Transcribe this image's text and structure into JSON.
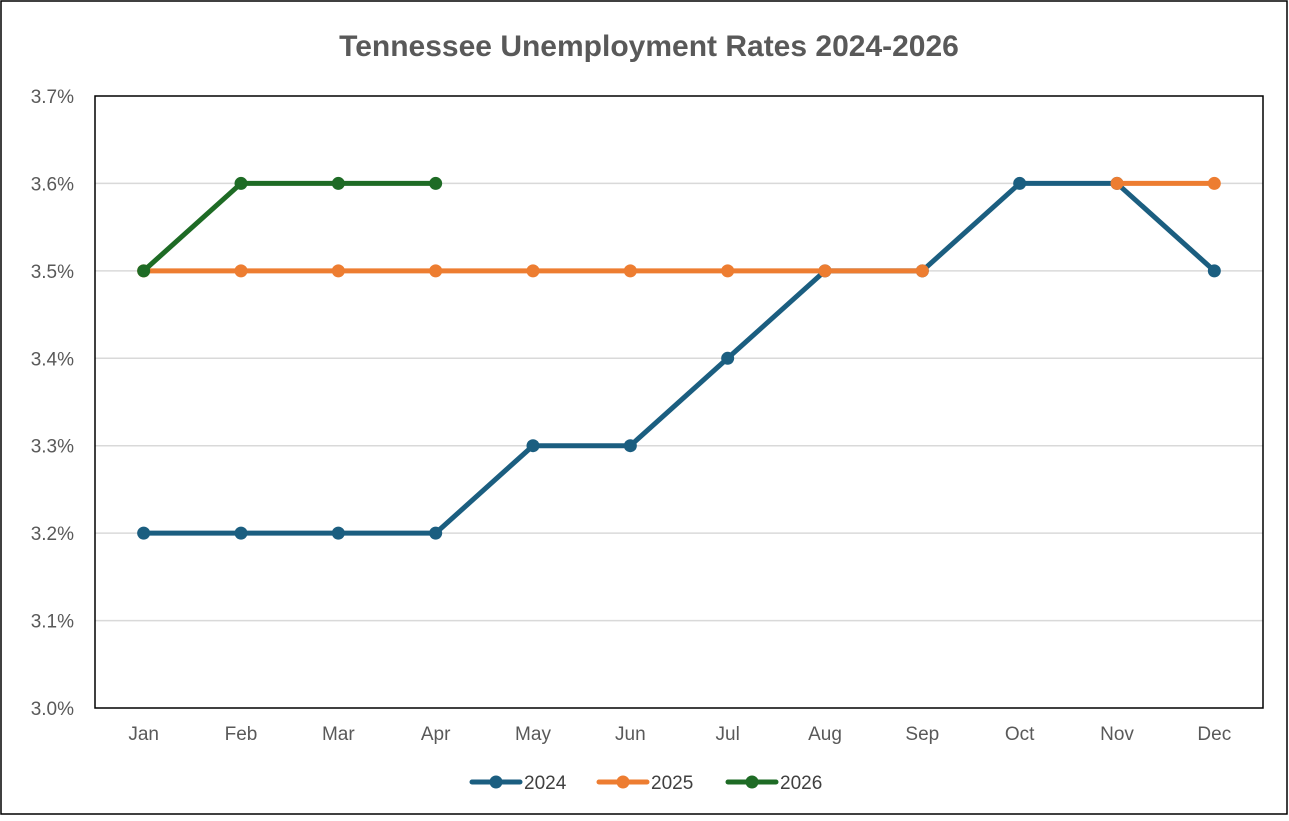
{
  "chart_data": {
    "type": "line",
    "title": "Tennessee Unemployment Rates 2024-2026",
    "xlabel": "",
    "ylabel": "",
    "categories": [
      "Jan",
      "Feb",
      "Mar",
      "Apr",
      "May",
      "Jun",
      "Jul",
      "Aug",
      "Sep",
      "Oct",
      "Nov",
      "Dec"
    ],
    "y_tick_labels": [
      "3.0%",
      "3.1%",
      "3.2%",
      "3.3%",
      "3.4%",
      "3.5%",
      "3.6%",
      "3.7%"
    ],
    "ylim": [
      3.0,
      3.7
    ],
    "y_step": 0.1,
    "grid": true,
    "legend_position": "bottom",
    "series": [
      {
        "name": "2024",
        "color": "#1b5e80",
        "values": [
          3.2,
          3.2,
          3.2,
          3.2,
          3.3,
          3.3,
          3.4,
          3.5,
          3.5,
          3.6,
          3.6,
          3.5
        ]
      },
      {
        "name": "2025",
        "color": "#ed7d31",
        "values": [
          3.5,
          3.5,
          3.5,
          3.5,
          3.5,
          3.5,
          3.5,
          3.5,
          3.5,
          null,
          3.6,
          3.6
        ]
      },
      {
        "name": "2026",
        "color": "#1e6b25",
        "values": [
          3.5,
          3.6,
          3.6,
          3.6,
          null,
          null,
          null,
          null,
          null,
          null,
          null,
          null
        ]
      }
    ]
  }
}
